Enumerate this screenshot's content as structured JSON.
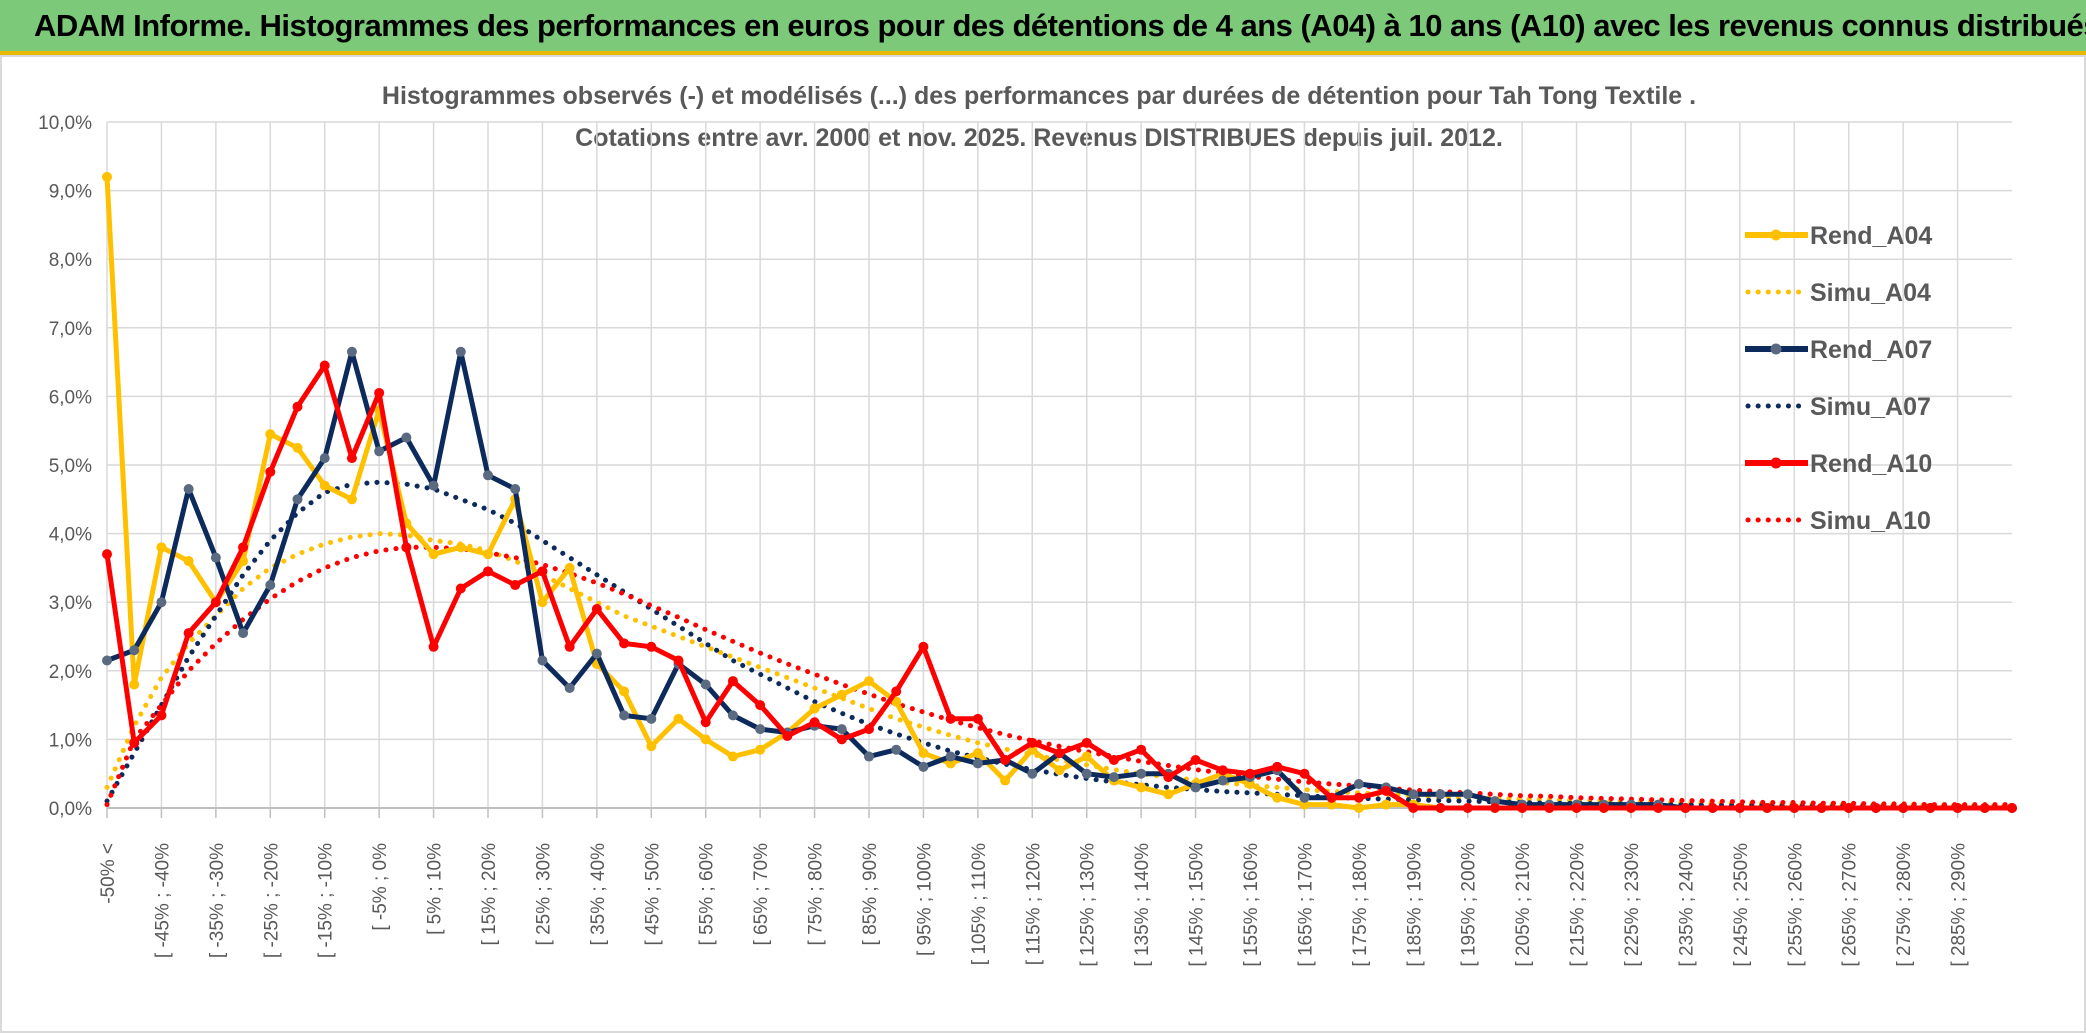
{
  "banner": {
    "title": "ADAM Informe. Histogrammes des performances en euros pour des détentions de 4 ans (A04) à 10 ans (A10) avec les revenus connus distribués"
  },
  "colors": {
    "banner_bg": "#7dc97a",
    "a04": "#ffc000",
    "a07": "#0d2a5c",
    "a07_marker": "#5a6a80",
    "a10": "#ff0000",
    "grid": "#d9d9d9"
  },
  "chart_data": {
    "type": "line",
    "title_line1": "Histogrammes observés (-) et modélisés (...) des performances par durées de détention pour Tah Tong Textile .",
    "title_line2": "Cotations entre avr. 2000 et nov. 2025. Revenus DISTRIBUES depuis juil. 2012.",
    "ylim": [
      0,
      10
    ],
    "yticks": [
      "0,0%",
      "1,0%",
      "2,0%",
      "3,0%",
      "4,0%",
      "5,0%",
      "6,0%",
      "7,0%",
      "8,0%",
      "9,0%",
      "10,0%"
    ],
    "xlabels": [
      "-50% <",
      "[ -45% ; -40%",
      "[ -35% ; -30%",
      "[ -25% ; -20%",
      "[ -15% ; -10%",
      "[ -5% ; 0%",
      "[ 5% ; 10%",
      "[ 15% ; 20%",
      "[ 25% ; 30%",
      "[ 35% ; 40%",
      "[ 45% ; 50%",
      "[ 55% ; 60%",
      "[ 65% ; 70%",
      "[ 75% ; 80%",
      "[ 85% ; 90%",
      "[ 95% ; 100%",
      "[ 105% ; 110%",
      "[ 115% ; 120%",
      "[ 125% ; 130%",
      "[ 135% ; 140%",
      "[ 145% ; 150%",
      "[ 155% ; 160%",
      "[ 165% ; 170%",
      "[ 175% ; 180%",
      "[ 185% ; 190%",
      "[ 195% ; 200%",
      "[ 205% ; 210%",
      "[ 215% ; 220%",
      "[ 225% ; 230%",
      "[ 235% ; 240%",
      "[ 245% ; 250%",
      "[ 255% ; 260%",
      "[ 265% ; 270%",
      "[ 275% ; 280%",
      "[ 285% ; 290%"
    ],
    "series": [
      {
        "name": "Simu_A04",
        "style": "dotted",
        "color": "#ffc000",
        "values": [
          0.3,
          1.2,
          1.9,
          2.4,
          2.8,
          3.2,
          3.5,
          3.7,
          3.85,
          3.95,
          4.0,
          3.98,
          3.9,
          3.85,
          3.75,
          3.6,
          3.4,
          3.2,
          3.0,
          2.8,
          2.65,
          2.5,
          2.35,
          2.2,
          2.05,
          1.9,
          1.75,
          1.6,
          1.45,
          1.3,
          1.18,
          1.06,
          0.95,
          0.86,
          0.78,
          0.7,
          0.63,
          0.56,
          0.5,
          0.45,
          0.41,
          0.37,
          0.33,
          0.3,
          0.27,
          0.24,
          0.22,
          0.2,
          0.18,
          0.16,
          0.15,
          0.14,
          0.13,
          0.12,
          0.11,
          0.1,
          0.09,
          0.08,
          0.07,
          0.07,
          0.06,
          0.06,
          0.05,
          0.05,
          0.05,
          0.04,
          0.04,
          0.04,
          0.03,
          0.03,
          0.03
        ]
      },
      {
        "name": "Simu_A07",
        "style": "dotted",
        "color": "#0d2a5c",
        "values": [
          0.1,
          0.8,
          1.5,
          2.2,
          2.8,
          3.4,
          3.9,
          4.3,
          4.6,
          4.72,
          4.75,
          4.72,
          4.65,
          4.5,
          4.35,
          4.15,
          3.9,
          3.65,
          3.4,
          3.15,
          2.9,
          2.65,
          2.4,
          2.15,
          1.95,
          1.75,
          1.55,
          1.38,
          1.22,
          1.08,
          0.95,
          0.83,
          0.73,
          0.64,
          0.56,
          0.49,
          0.43,
          0.38,
          0.34,
          0.3,
          0.27,
          0.24,
          0.22,
          0.2,
          0.18,
          0.16,
          0.14,
          0.13,
          0.12,
          0.11,
          0.1,
          0.09,
          0.08,
          0.07,
          0.07,
          0.06,
          0.06,
          0.05,
          0.05,
          0.04,
          0.04,
          0.04,
          0.03,
          0.03,
          0.03,
          0.03,
          0.02,
          0.02,
          0.02,
          0.02,
          0.02
        ]
      },
      {
        "name": "Simu_A10",
        "style": "dotted",
        "color": "#ff0000",
        "values": [
          0.05,
          1.0,
          1.5,
          2.0,
          2.4,
          2.75,
          3.05,
          3.3,
          3.5,
          3.65,
          3.75,
          3.8,
          3.8,
          3.78,
          3.72,
          3.65,
          3.55,
          3.42,
          3.28,
          3.12,
          2.95,
          2.78,
          2.6,
          2.43,
          2.26,
          2.1,
          1.95,
          1.8,
          1.66,
          1.52,
          1.4,
          1.28,
          1.17,
          1.07,
          0.98,
          0.9,
          0.82,
          0.75,
          0.68,
          0.62,
          0.56,
          0.51,
          0.46,
          0.42,
          0.38,
          0.35,
          0.32,
          0.29,
          0.26,
          0.24,
          0.22,
          0.2,
          0.18,
          0.17,
          0.15,
          0.14,
          0.13,
          0.12,
          0.11,
          0.1,
          0.09,
          0.08,
          0.08,
          0.07,
          0.07,
          0.06,
          0.06,
          0.05,
          0.05,
          0.05,
          0.05
        ]
      },
      {
        "name": "Rend_A04",
        "style": "solid",
        "color": "#ffc000",
        "values": [
          9.2,
          1.8,
          3.8,
          3.6,
          3.0,
          3.6,
          5.45,
          5.25,
          4.7,
          4.5,
          5.8,
          4.15,
          3.7,
          3.8,
          3.7,
          4.5,
          3.0,
          3.5,
          2.1,
          1.7,
          0.9,
          1.3,
          1.0,
          0.75,
          0.85,
          1.1,
          1.45,
          1.65,
          1.85,
          1.55,
          0.8,
          0.65,
          0.8,
          0.4,
          0.85,
          0.55,
          0.75,
          0.4,
          0.3,
          0.2,
          0.35,
          0.5,
          0.35,
          0.15,
          0.05,
          0.05,
          0.0,
          0.05,
          0.05,
          0.0,
          0.0,
          0.0,
          0.0,
          0.0,
          0.0,
          0.0,
          0.0,
          0.0,
          0.0,
          0.0,
          0.0,
          0.0,
          0.0,
          0.0,
          0.0,
          0.0,
          0.0,
          0.0,
          0.0,
          0.0,
          0.0
        ]
      },
      {
        "name": "Rend_A07",
        "style": "solid",
        "color": "#0d2a5c",
        "marker": "#5a6a80",
        "values": [
          2.15,
          2.3,
          3.0,
          4.65,
          3.65,
          2.55,
          3.25,
          4.5,
          5.1,
          6.65,
          5.2,
          5.4,
          4.7,
          6.65,
          4.85,
          4.65,
          2.15,
          1.75,
          2.25,
          1.35,
          1.3,
          2.1,
          1.8,
          1.35,
          1.15,
          1.1,
          1.2,
          1.15,
          0.75,
          0.85,
          0.6,
          0.75,
          0.65,
          0.7,
          0.5,
          0.8,
          0.5,
          0.45,
          0.5,
          0.5,
          0.3,
          0.4,
          0.45,
          0.55,
          0.15,
          0.15,
          0.35,
          0.3,
          0.2,
          0.2,
          0.2,
          0.1,
          0.05,
          0.05,
          0.05,
          0.05,
          0.05,
          0.05,
          0.0,
          0.0,
          0.0,
          0.0,
          0.0,
          0.0,
          0.0,
          0.0,
          0.0,
          0.0,
          0.0,
          0.0,
          0.0
        ]
      },
      {
        "name": "Rend_A10",
        "style": "solid",
        "color": "#ff0000",
        "values": [
          3.7,
          0.95,
          1.35,
          2.55,
          3.0,
          3.8,
          4.9,
          5.85,
          6.45,
          5.1,
          6.05,
          3.8,
          2.35,
          3.2,
          3.45,
          3.25,
          3.45,
          2.35,
          2.9,
          2.4,
          2.35,
          2.15,
          1.25,
          1.85,
          1.5,
          1.05,
          1.25,
          1.0,
          1.15,
          1.7,
          2.35,
          1.3,
          1.3,
          0.7,
          0.95,
          0.8,
          0.95,
          0.7,
          0.85,
          0.45,
          0.7,
          0.55,
          0.5,
          0.6,
          0.5,
          0.15,
          0.15,
          0.25,
          0.0,
          0.0,
          0.0,
          0.0,
          0.0,
          0.0,
          0.0,
          0.0,
          0.0,
          0.0,
          0.0,
          0.0,
          0.0,
          0.0,
          0.0,
          0.0,
          0.0,
          0.0,
          0.0,
          0.0,
          0.0,
          0.0,
          0.0
        ]
      }
    ],
    "legend": [
      "Rend_A04",
      "Simu_A04",
      "Rend_A07",
      "Simu_A07",
      "Rend_A10",
      "Simu_A10"
    ],
    "legend_position": "right"
  }
}
